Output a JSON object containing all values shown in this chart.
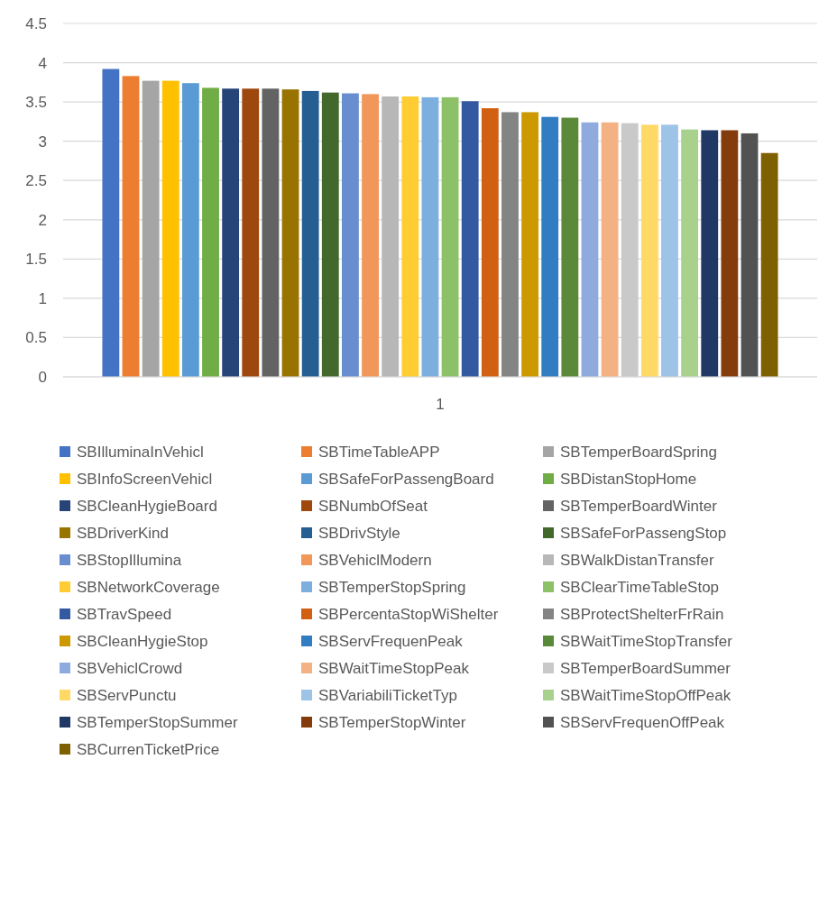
{
  "chart_data": {
    "type": "bar",
    "categories": [
      "1"
    ],
    "ylim": [
      0,
      4.5
    ],
    "yticks": [
      0,
      0.5,
      1,
      1.5,
      2,
      2.5,
      3,
      3.5,
      4,
      4.5
    ],
    "grid": "y",
    "legend": "bottom",
    "series": [
      {
        "name": "SBIlluminaInVehicl",
        "color": "#4472c4",
        "values": [
          3.92
        ]
      },
      {
        "name": "SBTimeTableAPP",
        "color": "#ed7d31",
        "values": [
          3.83
        ]
      },
      {
        "name": "SBTemperBoardSpring",
        "color": "#a5a5a5",
        "values": [
          3.77
        ]
      },
      {
        "name": "SBInfoScreenVehicl",
        "color": "#ffc000",
        "values": [
          3.77
        ]
      },
      {
        "name": "SBSafeForPassengBoard",
        "color": "#5b9bd5",
        "values": [
          3.74
        ]
      },
      {
        "name": "SBDistanStopHome",
        "color": "#70ad47",
        "values": [
          3.68
        ]
      },
      {
        "name": "SBCleanHygieBoard",
        "color": "#264478",
        "values": [
          3.67
        ]
      },
      {
        "name": "SBNumbOfSeat",
        "color": "#9e480e",
        "values": [
          3.67
        ]
      },
      {
        "name": "SBTemperBoardWinter",
        "color": "#636363",
        "values": [
          3.67
        ]
      },
      {
        "name": "SBDriverKind",
        "color": "#997300",
        "values": [
          3.66
        ]
      },
      {
        "name": "SBDrivStyle",
        "color": "#255e91",
        "values": [
          3.64
        ]
      },
      {
        "name": "SBSafeForPassengStop",
        "color": "#43682b",
        "values": [
          3.62
        ]
      },
      {
        "name": "SBStopIllumina",
        "color": "#698ed0",
        "values": [
          3.61
        ]
      },
      {
        "name": "SBVehiclModern",
        "color": "#f1975a",
        "values": [
          3.6
        ]
      },
      {
        "name": "SBWalkDistanTransfer",
        "color": "#b7b7b7",
        "values": [
          3.57
        ]
      },
      {
        "name": "SBNetworkCoverage",
        "color": "#ffcd33",
        "values": [
          3.57
        ]
      },
      {
        "name": "SBTemperStopSpring",
        "color": "#7cafdd",
        "values": [
          3.56
        ]
      },
      {
        "name": "SBClearTimeTableStop",
        "color": "#8cc168",
        "values": [
          3.56
        ]
      },
      {
        "name": "SBTravSpeed",
        "color": "#335aa1",
        "values": [
          3.51
        ]
      },
      {
        "name": "SBPercentaStopWiShelter",
        "color": "#d26012",
        "values": [
          3.42
        ]
      },
      {
        "name": "SBProtectShelterFrRain",
        "color": "#848484",
        "values": [
          3.37
        ]
      },
      {
        "name": "SBCleanHygieStop",
        "color": "#cc9a00",
        "values": [
          3.37
        ]
      },
      {
        "name": "SBServFrequenPeak",
        "color": "#327dc2",
        "values": [
          3.31
        ]
      },
      {
        "name": "SBWaitTimeStopTransfer",
        "color": "#5a8a39",
        "values": [
          3.3
        ]
      },
      {
        "name": "SBVehiclCrowd",
        "color": "#8faadc",
        "values": [
          3.24
        ]
      },
      {
        "name": "SBWaitTimeStopPeak",
        "color": "#f4b183",
        "values": [
          3.24
        ]
      },
      {
        "name": "SBTemperBoardSummer",
        "color": "#c9c9c9",
        "values": [
          3.23
        ]
      },
      {
        "name": "SBServPunctu",
        "color": "#ffd966",
        "values": [
          3.21
        ]
      },
      {
        "name": "SBVariabiliTicketTyp",
        "color": "#9dc3e6",
        "values": [
          3.21
        ]
      },
      {
        "name": "SBWaitTimeStopOffPeak",
        "color": "#a9d18e",
        "values": [
          3.15
        ]
      },
      {
        "name": "SBTemperStopSummer",
        "color": "#203864",
        "values": [
          3.14
        ]
      },
      {
        "name": "SBTemperStopWinter",
        "color": "#843c0c",
        "values": [
          3.14
        ]
      },
      {
        "name": "SBServFrequenOffPeak",
        "color": "#525252",
        "values": [
          3.1
        ]
      },
      {
        "name": "SBCurrenTicketPrice",
        "color": "#7f6000",
        "values": [
          2.85
        ]
      }
    ]
  }
}
